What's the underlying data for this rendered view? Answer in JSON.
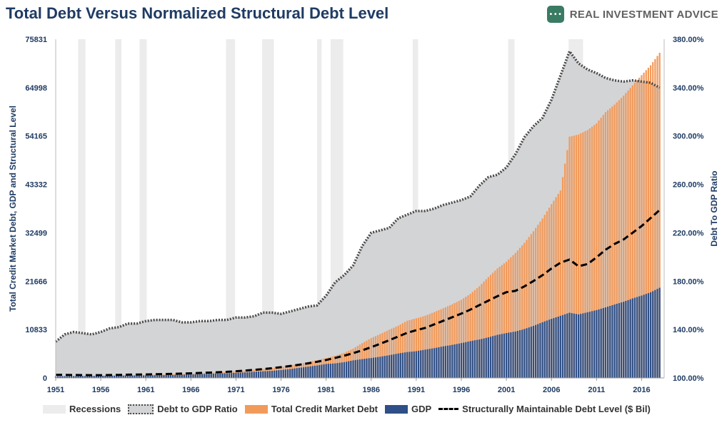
{
  "header": {
    "title": "Total Debt Versus Normalized Structural Debt Level",
    "brand": "REAL INVESTMENT ADVICE",
    "brand_logo_text": "• • •"
  },
  "chart_data": {
    "type": "bar",
    "title": "Total Debt Versus Normalized Structural Debt Level",
    "ylabel": "Total Credit Market Debt, GDP and Structural Level",
    "y2label": "Debt To GDP Ratio",
    "ylim": [
      0,
      75831
    ],
    "y2lim": [
      1.0,
      3.8
    ],
    "xlim": [
      1951,
      2018.5
    ],
    "x_ticks": [
      "1951",
      "1956",
      "1961",
      "1966",
      "1971",
      "1976",
      "1981",
      "1986",
      "1991",
      "1996",
      "2001",
      "2006",
      "2011",
      "2016"
    ],
    "y_ticks": [
      "0",
      "10833",
      "21666",
      "32499",
      "43332",
      "54165",
      "64998",
      "75831"
    ],
    "y2_ticks": [
      "100.00%",
      "140.00%",
      "180.00%",
      "220.00%",
      "260.00%",
      "300.00%",
      "340.00%",
      "380.00%"
    ],
    "recessions": [
      [
        1953.5,
        1954.3
      ],
      [
        1957.6,
        1958.3
      ],
      [
        1960.3,
        1961.1
      ],
      [
        1969.9,
        1970.9
      ],
      [
        1973.9,
        1975.2
      ],
      [
        1980.0,
        1980.5
      ],
      [
        1981.5,
        1982.9
      ],
      [
        1990.6,
        1991.2
      ],
      [
        2001.2,
        2001.9
      ],
      [
        2007.9,
        2009.5
      ]
    ],
    "years": [
      1951,
      1952,
      1953,
      1954,
      1955,
      1956,
      1957,
      1958,
      1959,
      1960,
      1961,
      1962,
      1963,
      1964,
      1965,
      1966,
      1967,
      1968,
      1969,
      1970,
      1971,
      1972,
      1973,
      1974,
      1975,
      1976,
      1977,
      1978,
      1979,
      1980,
      1981,
      1982,
      1983,
      1984,
      1985,
      1986,
      1987,
      1988,
      1989,
      1990,
      1991,
      1992,
      1993,
      1994,
      1995,
      1996,
      1997,
      1998,
      1999,
      2000,
      2001,
      2002,
      2003,
      2004,
      2005,
      2006,
      2007,
      2008,
      2009,
      2010,
      2011,
      2012,
      2013,
      2014,
      2015,
      2016,
      2017,
      2018
    ],
    "series": [
      {
        "name": "Debt to GDP Ratio",
        "values": [
          1.3,
          1.36,
          1.38,
          1.37,
          1.36,
          1.38,
          1.41,
          1.42,
          1.45,
          1.45,
          1.47,
          1.48,
          1.48,
          1.48,
          1.46,
          1.46,
          1.47,
          1.47,
          1.48,
          1.48,
          1.5,
          1.5,
          1.51,
          1.54,
          1.54,
          1.53,
          1.55,
          1.57,
          1.59,
          1.6,
          1.68,
          1.79,
          1.85,
          1.93,
          2.09,
          2.2,
          2.22,
          2.24,
          2.32,
          2.35,
          2.38,
          2.38,
          2.4,
          2.43,
          2.45,
          2.47,
          2.5,
          2.59,
          2.66,
          2.68,
          2.74,
          2.85,
          2.99,
          3.08,
          3.15,
          3.3,
          3.5,
          3.7,
          3.6,
          3.55,
          3.52,
          3.48,
          3.46,
          3.45,
          3.46,
          3.45,
          3.44,
          3.4
        ]
      },
      {
        "name": "Total Credit Market Debt",
        "values": [
          300,
          330,
          360,
          390,
          420,
          460,
          500,
          540,
          580,
          630,
          680,
          740,
          800,
          870,
          940,
          1010,
          1080,
          1170,
          1270,
          1380,
          1510,
          1660,
          1840,
          2030,
          2230,
          2470,
          2780,
          3150,
          3560,
          3980,
          4460,
          4970,
          5620,
          6560,
          7790,
          8910,
          9830,
          10790,
          11700,
          12800,
          13350,
          13930,
          14740,
          15600,
          16510,
          17500,
          18830,
          20530,
          22590,
          24510,
          26040,
          27980,
          30260,
          32860,
          35710,
          38910,
          41970,
          54000,
          54500,
          55500,
          57000,
          59500,
          61200,
          63200,
          65500,
          67800,
          70000,
          72800
        ]
      },
      {
        "name": "GDP",
        "values": [
          390,
          400,
          420,
          430,
          440,
          480,
          500,
          520,
          550,
          540,
          560,
          600,
          630,
          670,
          720,
          790,
          850,
          920,
          990,
          1050,
          1140,
          1240,
          1380,
          1480,
          1600,
          1780,
          1990,
          2250,
          2520,
          2790,
          3130,
          3260,
          3530,
          3930,
          4220,
          4460,
          4740,
          5100,
          5480,
          5800,
          5990,
          6340,
          6670,
          7070,
          7400,
          7800,
          8240,
          8610,
          9090,
          9640,
          10050,
          10400,
          10950,
          11650,
          12470,
          13230,
          13900,
          14600,
          14220,
          14700,
          15190,
          15800,
          16450,
          17050,
          17800,
          18440,
          19170,
          20200
        ]
      },
      {
        "name": "Structurally Maintainable Debt Level ($ Bil)",
        "values": [
          700,
          680,
          650,
          640,
          620,
          630,
          650,
          690,
          740,
          760,
          790,
          830,
          870,
          920,
          970,
          1040,
          1110,
          1190,
          1280,
          1380,
          1500,
          1640,
          1800,
          1980,
          2180,
          2410,
          2670,
          2950,
          3270,
          3630,
          4030,
          4480,
          4980,
          5550,
          6180,
          6880,
          7640,
          8440,
          9270,
          10100,
          10700,
          11200,
          12000,
          12800,
          13600,
          14400,
          15300,
          16300,
          17300,
          18300,
          19200,
          19500,
          20500,
          21700,
          23000,
          24500,
          25800,
          26500,
          25000,
          25500,
          27000,
          28700,
          30000,
          31000,
          32500,
          34000,
          35800,
          37600
        ]
      }
    ]
  },
  "legend": {
    "recessions": "Recessions",
    "ratio": "Debt to GDP Ratio",
    "debt": "Total Credit Market Debt",
    "gdp": "GDP",
    "structural": "Structurally Maintainable Debt Level ($ Bil)"
  },
  "colors": {
    "recession": "#ececec",
    "ratio_area": "#d3d4d6",
    "ratio_line": "#4a4a4a",
    "debt": "#f29a5a",
    "gdp": "#2e4f88",
    "structural": "#000000",
    "axis_text": "#1f3b63"
  }
}
